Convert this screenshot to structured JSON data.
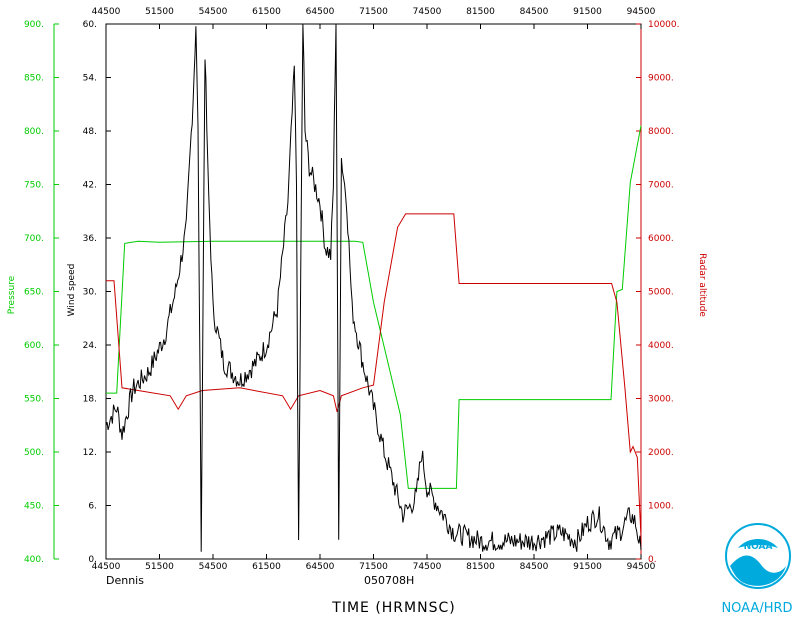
{
  "chart_data": {
    "type": "line",
    "xlabel": "TIME (HRMNSC)",
    "x_ticks": [
      "44500",
      "51500",
      "54500",
      "61500",
      "64500",
      "71500",
      "74500",
      "81500",
      "84500",
      "91500",
      "94500"
    ],
    "axes": {
      "pressure": {
        "label": "Pressure",
        "ylim": [
          400,
          900
        ],
        "ticks": [
          "400.",
          "450.",
          "500.",
          "550.",
          "600.",
          "650.",
          "700.",
          "750.",
          "800.",
          "850.",
          "900."
        ],
        "color": "#00cc00"
      },
      "wind": {
        "label": "Wind speed",
        "ylim": [
          0,
          60
        ],
        "ticks": [
          "0.",
          "6.",
          "12.",
          "18.",
          "24.",
          "30.",
          "36.",
          "42.",
          "48.",
          "54.",
          "60."
        ],
        "color": "#000000"
      },
      "radar": {
        "label": "Radar altitude",
        "ylim": [
          0,
          10000
        ],
        "ticks": [
          "0.",
          "1000.",
          "2000.",
          "3000.",
          "4000.",
          "5000.",
          "6000.",
          "7000.",
          "8000.",
          "9000.",
          "10000."
        ],
        "color": "#cc0000"
      }
    },
    "series": [
      {
        "axis": "pressure",
        "color": "#00cc00",
        "points": [
          [
            0,
            555
          ],
          [
            0.02,
            555
          ],
          [
            0.035,
            695
          ],
          [
            0.06,
            697
          ],
          [
            0.1,
            696
          ],
          [
            0.2,
            697
          ],
          [
            0.3,
            697
          ],
          [
            0.4,
            697
          ],
          [
            0.465,
            697
          ],
          [
            0.48,
            696
          ],
          [
            0.5,
            640
          ],
          [
            0.55,
            535
          ],
          [
            0.565,
            466
          ],
          [
            0.6,
            466
          ],
          [
            0.655,
            466
          ],
          [
            0.66,
            549
          ],
          [
            0.7,
            549
          ],
          [
            0.8,
            549
          ],
          [
            0.944,
            549
          ],
          [
            0.955,
            650
          ],
          [
            0.965,
            652
          ],
          [
            0.98,
            752
          ],
          [
            1,
            805
          ]
        ]
      },
      {
        "axis": "radar",
        "color": "#cc0000",
        "points": [
          [
            0,
            5200
          ],
          [
            0.015,
            5200
          ],
          [
            0.03,
            3200
          ],
          [
            0.06,
            3150
          ],
          [
            0.12,
            3050
          ],
          [
            0.135,
            2800
          ],
          [
            0.15,
            3050
          ],
          [
            0.18,
            3150
          ],
          [
            0.25,
            3200
          ],
          [
            0.33,
            3050
          ],
          [
            0.345,
            2800
          ],
          [
            0.36,
            3050
          ],
          [
            0.4,
            3150
          ],
          [
            0.425,
            3050
          ],
          [
            0.432,
            2750
          ],
          [
            0.44,
            3050
          ],
          [
            0.48,
            3200
          ],
          [
            0.5,
            3250
          ],
          [
            0.52,
            4800
          ],
          [
            0.545,
            6200
          ],
          [
            0.56,
            6450
          ],
          [
            0.65,
            6450
          ],
          [
            0.66,
            5150
          ],
          [
            0.75,
            5150
          ],
          [
            0.945,
            5150
          ],
          [
            0.955,
            4800
          ],
          [
            0.97,
            3200
          ],
          [
            0.98,
            2000
          ],
          [
            0.985,
            2100
          ],
          [
            0.993,
            1900
          ],
          [
            1,
            400
          ]
        ]
      },
      {
        "axis": "wind",
        "color": "#000000",
        "noise": 0.6,
        "points": [
          [
            0,
            15
          ],
          [
            0.02,
            17
          ],
          [
            0.03,
            14
          ],
          [
            0.05,
            19
          ],
          [
            0.08,
            21
          ],
          [
            0.11,
            25
          ],
          [
            0.13,
            30
          ],
          [
            0.15,
            37
          ],
          [
            0.163,
            52
          ],
          [
            0.168,
            60
          ],
          [
            0.172,
            48
          ],
          [
            0.178,
            2
          ],
          [
            0.185,
            57
          ],
          [
            0.19,
            44
          ],
          [
            0.2,
            28
          ],
          [
            0.22,
            22
          ],
          [
            0.25,
            20
          ],
          [
            0.28,
            22
          ],
          [
            0.3,
            24
          ],
          [
            0.32,
            28
          ],
          [
            0.34,
            40
          ],
          [
            0.352,
            55
          ],
          [
            0.356,
            42
          ],
          [
            0.36,
            1
          ],
          [
            0.368,
            62
          ],
          [
            0.372,
            48
          ],
          [
            0.38,
            44
          ],
          [
            0.4,
            40
          ],
          [
            0.41,
            35
          ],
          [
            0.42,
            34
          ],
          [
            0.425,
            42
          ],
          [
            0.43,
            62
          ],
          [
            0.435,
            2
          ],
          [
            0.44,
            45
          ],
          [
            0.45,
            40
          ],
          [
            0.46,
            28
          ],
          [
            0.48,
            22
          ],
          [
            0.5,
            17
          ],
          [
            0.52,
            12
          ],
          [
            0.54,
            8
          ],
          [
            0.555,
            5
          ],
          [
            0.57,
            6
          ],
          [
            0.58,
            7
          ],
          [
            0.59,
            12
          ],
          [
            0.6,
            8
          ],
          [
            0.62,
            6
          ],
          [
            0.65,
            3
          ],
          [
            0.7,
            2
          ],
          [
            0.75,
            2
          ],
          [
            0.8,
            2
          ],
          [
            0.85,
            3
          ],
          [
            0.88,
            2
          ],
          [
            0.9,
            4
          ],
          [
            0.92,
            5
          ],
          [
            0.94,
            2
          ],
          [
            0.96,
            3
          ],
          [
            0.98,
            5
          ],
          [
            0.99,
            4
          ],
          [
            1,
            1
          ]
        ]
      }
    ]
  },
  "footer": {
    "storm": "Dennis",
    "date": "050708H"
  },
  "organization": "NOAA/HRD",
  "logo_text": "NOAA",
  "colors": {
    "pressure": "#00cc00",
    "wind": "#000000",
    "radar": "#cc0000"
  }
}
